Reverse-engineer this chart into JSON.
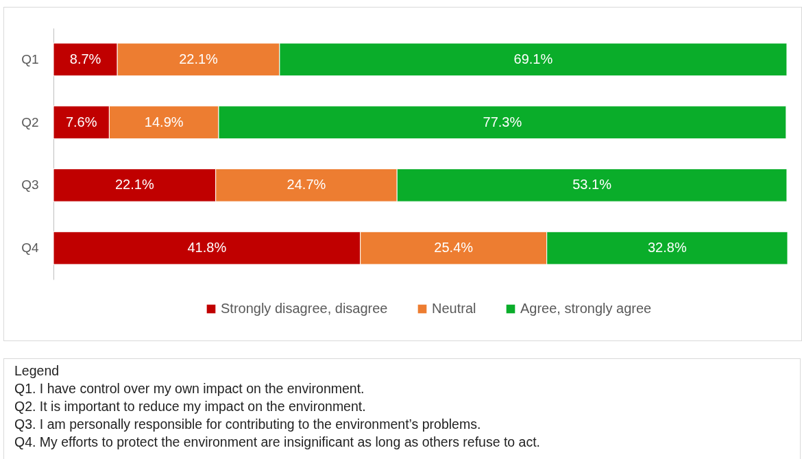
{
  "chart_data": {
    "type": "bar",
    "orientation": "horizontal",
    "stacked": true,
    "categories": [
      "Q1",
      "Q2",
      "Q3",
      "Q4"
    ],
    "series": [
      {
        "name": "Strongly disagree, disagree",
        "color": "#c00000",
        "values": [
          8.7,
          7.6,
          22.1,
          41.8
        ],
        "value_labels": [
          "8.7%",
          "7.6%",
          "22.1%",
          "41.8%"
        ]
      },
      {
        "name": "Neutral",
        "color": "#ed7d31",
        "values": [
          22.1,
          14.9,
          24.7,
          25.4
        ],
        "value_labels": [
          "22.1%",
          "14.9%",
          "24.7%",
          "25.4%"
        ]
      },
      {
        "name": "Agree, strongly agree",
        "color": "#0aad2a",
        "values": [
          69.1,
          77.3,
          53.1,
          32.8
        ],
        "value_labels": [
          "69.1%",
          "77.3%",
          "53.1%",
          "32.8%"
        ]
      }
    ],
    "legend": "bottom",
    "grid": false,
    "annotations": [
      "Legend",
      "Q1. I have control over my own impact on the environment.",
      "Q2. It is important to reduce my impact on the environment.",
      "Q3. I am personally responsible for contributing to the environment’s problems.",
      "Q4. My efforts to protect the environment are insignificant as long as others refuse to act."
    ]
  }
}
